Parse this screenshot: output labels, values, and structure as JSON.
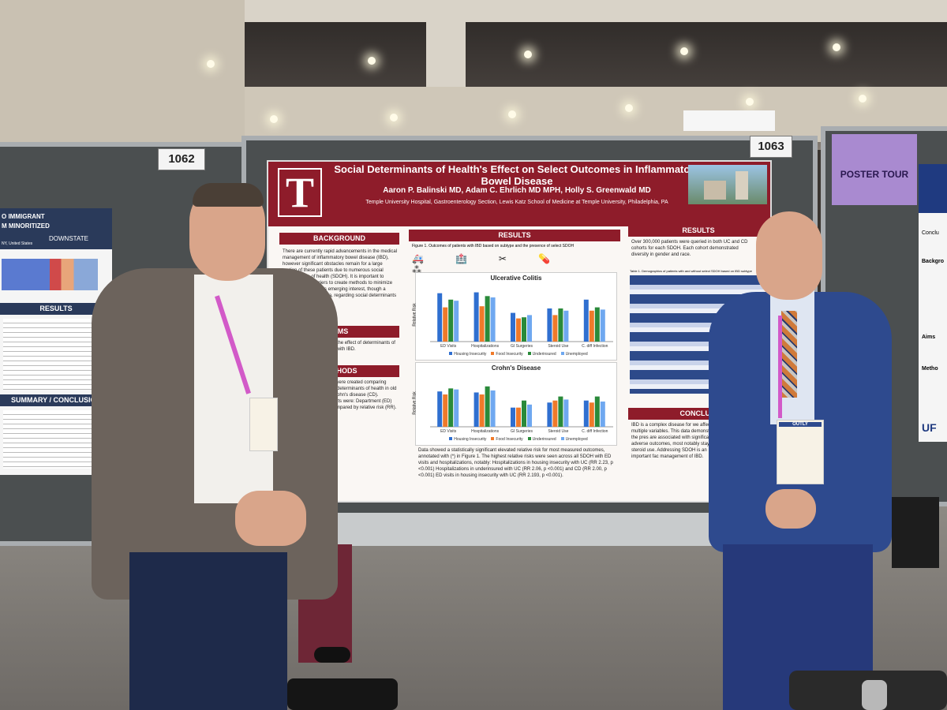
{
  "booths": {
    "left_number": "1062",
    "right_number": "1063"
  },
  "purple_sign": "POSTER TOUR",
  "left_poster": {
    "title_part1": "O IMMIGRANT",
    "title_part2": "M MINORITIZED",
    "institution": "DOWNSTATE",
    "subtitle": "NY, United States",
    "section1": "RESULTS",
    "section2": "SUMMARY / CONCLUSION"
  },
  "right_poster": {
    "abbrev": "UF",
    "items": [
      "Backgro",
      "Aims",
      "Metho",
      "Conclu"
    ]
  },
  "poster": {
    "title": "Social Determinants of Health's Effect on Select Outcomes in Inflammatory Bowel Disease",
    "authors": "Aaron P. Balinski MD, Adam C. Ehrlich MD MPH, Holly S. Greenwald MD",
    "affiliation": "Temple University Hospital, Gastroenterology Section, Lewis Katz School of Medicine at Temple University, Philadelphia, PA",
    "logo": "T",
    "background_head": "BACKGROUND",
    "background_text": "There are currently rapid advancements in the medical management of inflammatory bowel disease (IBD), however significant obstacles remain for a large portion of these patients due to numerous social determinants of health (SDOH). It is important to identify these barriers to create methods to minimize their impact. There is emerging interest, though a general scarcity of data, regarding social determinants with IBD.",
    "aims_head": "AIMS",
    "aims_text": "This study was to identify the effect of determinants of health that affect patients with IBD.",
    "methods_head": "METHODS",
    "methods_text": "diagnoses in the TriNetX were created comparing presence and absence of determinants of health in old or older with Ulcerative Crohn's disease (CD). ...outcomes in these cohorts were: Department (ED) visits ...infections were compared by relative risk (RR).",
    "results_head": "RESULTS",
    "fig_caption": "Figure 1. Outcomes of patients with IBD based on subtype and the presence of select SDOH",
    "chart1_title": "Ulcerative Colitis",
    "chart2_title": "Crohn's Disease",
    "ylabel": "Relative Risk",
    "categories": [
      "ED Visits",
      "Hospitalizations",
      "GI Surgeries",
      "Steroid Use",
      "C. diff Infection"
    ],
    "legend": [
      "Housing Insecurity",
      "Food Insecurity",
      "Underinsured",
      "Unemployed"
    ],
    "results_text": "Data showed a statistically significant elevated relative risk for most measured outcomes, annotated with (*) in Figure 1. The highest relative risks were seen across all SDOH with ED visits and hospitalizations, notably: Hospitalizations in housing insecurity with UC (RR 2.23, p <0.001) Hospitalizations in underinsured with UC (RR 2.06, p <0.001) and CD (RR 2.00, p <0.001) ED visits in housing insecurity with UC (RR 2.193, p <0.001).",
    "results2_head": "RESULTS",
    "results2_text": "Over 300,000 patients were queried in both UC and CD cohorts for each SDOH. Each cohort demonstrated diversity in gender and race.",
    "table_caption": "Table 1. Demographics of patients with and without select SDOH based on IBD subtype",
    "conclusion_head": "CONCLUSI",
    "conclusion_text": "IBD is a complex disease for we affected by multiple variables. This data demonstrates the pres are associated with significantly adverse outcomes, most notably stays, and steroid use. Addressing SDOH is an important fac management of IBD."
  },
  "badge_text": "OUTLY",
  "colors": {
    "maroon": "#8e1c2a",
    "blue_bar": "#2f6fd0",
    "orange_bar": "#f07a2a",
    "green_bar": "#2a8a3a",
    "light_blue_bar": "#6fa8f0"
  },
  "chart_data": [
    {
      "type": "bar",
      "title": "Ulcerative Colitis",
      "categories": [
        "ED Visits",
        "Hospitalizations",
        "GI Surgeries",
        "Steroid Use",
        "C. diff Infection"
      ],
      "ylabel": "Relative Risk",
      "ylim": [
        0,
        2.5
      ],
      "series": [
        {
          "name": "Housing Insecurity",
          "values": [
            2.19,
            2.23,
            1.3,
            1.5,
            1.9
          ]
        },
        {
          "name": "Food Insecurity",
          "values": [
            1.55,
            1.6,
            1.05,
            1.2,
            1.4
          ]
        },
        {
          "name": "Underinsured",
          "values": [
            1.9,
            2.06,
            1.1,
            1.5,
            1.55
          ]
        },
        {
          "name": "Unemployed",
          "values": [
            1.85,
            2.0,
            1.2,
            1.4,
            1.45
          ]
        }
      ]
    },
    {
      "type": "bar",
      "title": "Crohn's Disease",
      "categories": [
        "ED Visits",
        "Hospitalizations",
        "GI Surgeries",
        "Steroid Use",
        "C. diff Infection"
      ],
      "ylabel": "Relative Risk",
      "ylim": [
        0,
        2.5
      ],
      "series": [
        {
          "name": "Housing Insecurity",
          "values": [
            1.75,
            1.7,
            0.95,
            1.2,
            1.3
          ]
        },
        {
          "name": "Food Insecurity",
          "values": [
            1.6,
            1.6,
            0.95,
            1.3,
            1.2
          ]
        },
        {
          "name": "Underinsured",
          "values": [
            1.9,
            2.0,
            1.3,
            1.5,
            1.5
          ]
        },
        {
          "name": "Unemployed",
          "values": [
            1.85,
            1.8,
            1.1,
            1.35,
            1.25
          ]
        }
      ]
    }
  ]
}
